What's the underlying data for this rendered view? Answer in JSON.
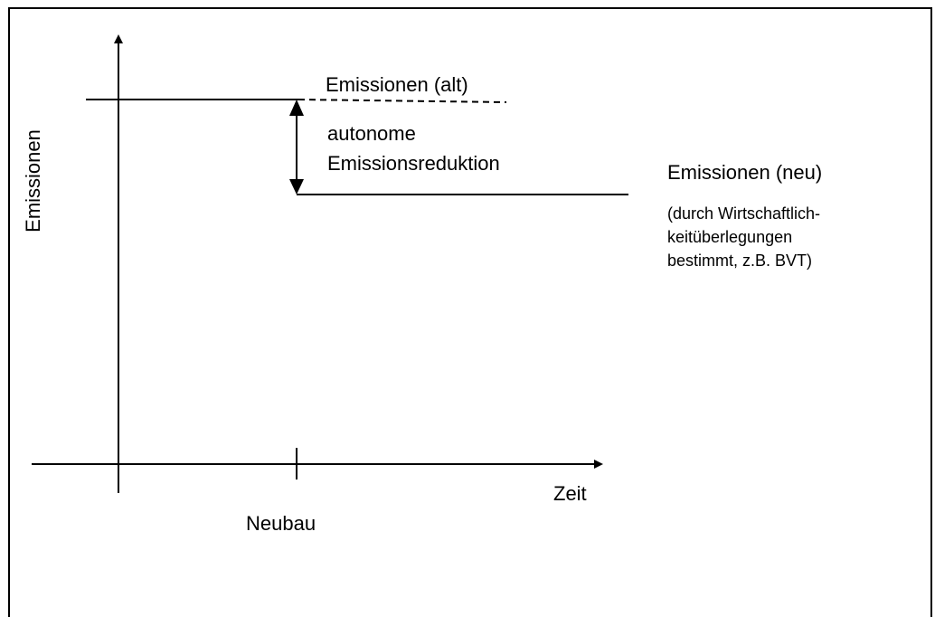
{
  "diagram": {
    "y_axis_label": "Emissionen",
    "x_axis_label": "Zeit",
    "x_tick_label": "Neubau",
    "old_level_label": "Emissionen (alt)",
    "reduction_label": [
      "autonome",
      "Emissionsreduktion"
    ],
    "new_level_label": "Emissionen (neu)",
    "new_level_note": [
      "(durch Wirtschaftlich-",
      "keitüberlegungen",
      "bestimmt, z.B. BVT)"
    ]
  }
}
